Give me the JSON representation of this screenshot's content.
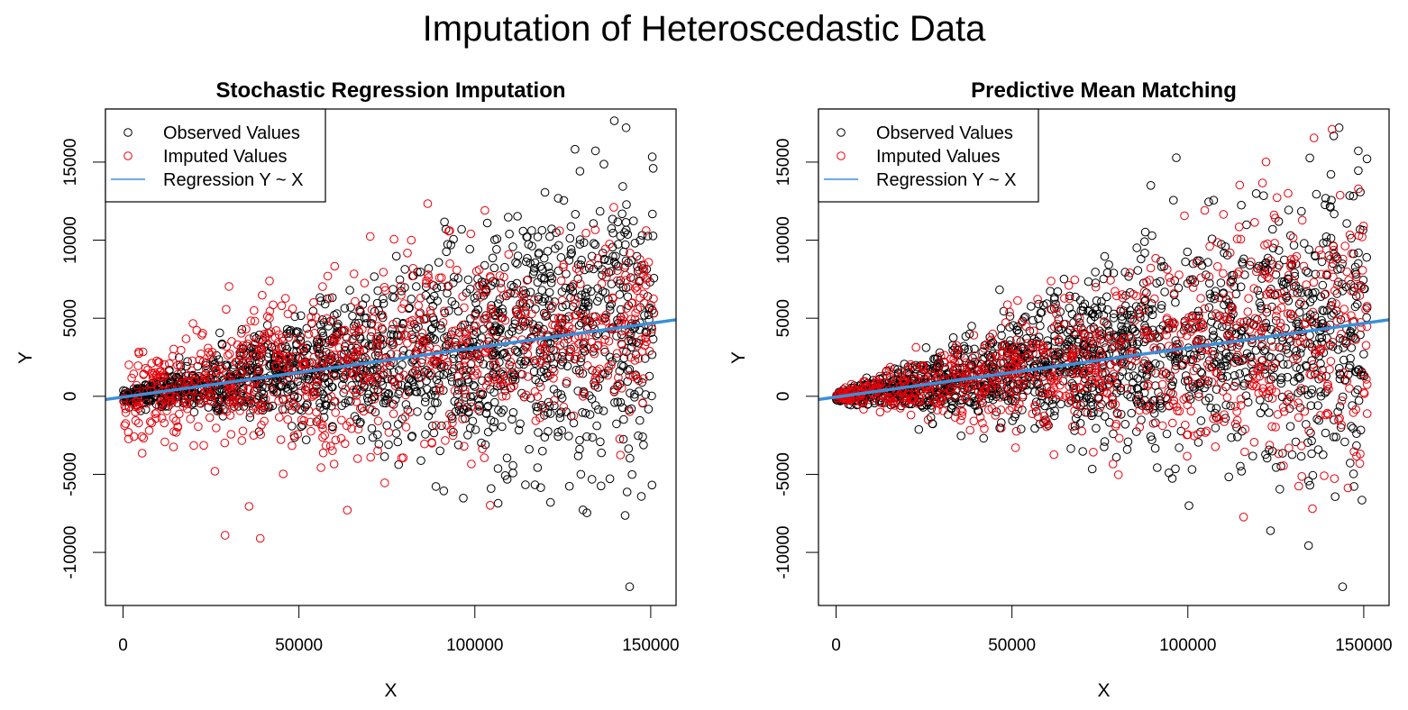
{
  "chart_data": {
    "type": "scatter",
    "title": "Imputation of Heteroscedastic Data",
    "colors": {
      "observed": "#000000",
      "imputed": "#e8000b",
      "regression": "#3b8fd8"
    },
    "panels": [
      {
        "title": "Stochastic Regression Imputation",
        "xlabel": "X",
        "ylabel": "Y",
        "xlim": [
          -5000,
          157200
        ],
        "ylim": [
          -13400,
          18400
        ],
        "xticks": [
          0,
          50000,
          100000,
          150000
        ],
        "xtick_labels": [
          "0",
          "50000",
          "100000",
          "150000"
        ],
        "yticks": [
          -10000,
          -5000,
          0,
          5000,
          10000,
          15000
        ],
        "ytick_labels": [
          "-10000",
          "-5000",
          "0",
          "5000",
          "10000",
          "15000"
        ],
        "legend": {
          "position": "top-left",
          "entries": [
            "Observed Values",
            "Imputed Values",
            "Regression Y ~ X"
          ]
        },
        "regression": {
          "intercept": -50,
          "slope": 0.0315
        },
        "observed": {
          "n": 1700,
          "x_range": [
            0,
            151000
          ],
          "noise": "heteroscedastic",
          "noise_sd_per_x": 0.032
        },
        "imputed": {
          "n": 900,
          "x_range": [
            0,
            151000
          ],
          "noise": "homoscedastic",
          "noise_sd": 2800
        },
        "notable_points": [
          {
            "series": "observed",
            "x": 144000,
            "y": -12200
          },
          {
            "series": "observed",
            "x": 143000,
            "y": 17200
          },
          {
            "series": "imputed",
            "x": 39000,
            "y": -9100
          },
          {
            "series": "imputed",
            "x": 29000,
            "y": -8900
          }
        ]
      },
      {
        "title": "Predictive Mean Matching",
        "xlabel": "X",
        "ylabel": "Y",
        "xlim": [
          -5000,
          157200
        ],
        "ylim": [
          -13400,
          18400
        ],
        "xticks": [
          0,
          50000,
          100000,
          150000
        ],
        "xtick_labels": [
          "0",
          "50000",
          "100000",
          "150000"
        ],
        "yticks": [
          -10000,
          -5000,
          0,
          5000,
          10000,
          15000
        ],
        "ytick_labels": [
          "-10000",
          "-5000",
          "0",
          "5000",
          "10000",
          "15000"
        ],
        "legend": {
          "position": "top-left",
          "entries": [
            "Observed Values",
            "Imputed Values",
            "Regression Y ~ X"
          ]
        },
        "regression": {
          "intercept": -50,
          "slope": 0.0315
        },
        "observed": {
          "n": 1700,
          "x_range": [
            0,
            151000
          ],
          "noise": "heteroscedastic",
          "noise_sd_per_x": 0.032
        },
        "imputed": {
          "n": 900,
          "x_range": [
            0,
            151000
          ],
          "noise": "heteroscedastic",
          "noise_sd_per_x": 0.032
        },
        "notable_points": [
          {
            "series": "observed",
            "x": 144000,
            "y": -12200
          },
          {
            "series": "observed",
            "x": 143000,
            "y": 17200
          },
          {
            "series": "imputed",
            "x": 141000,
            "y": 17100
          }
        ]
      }
    ]
  }
}
